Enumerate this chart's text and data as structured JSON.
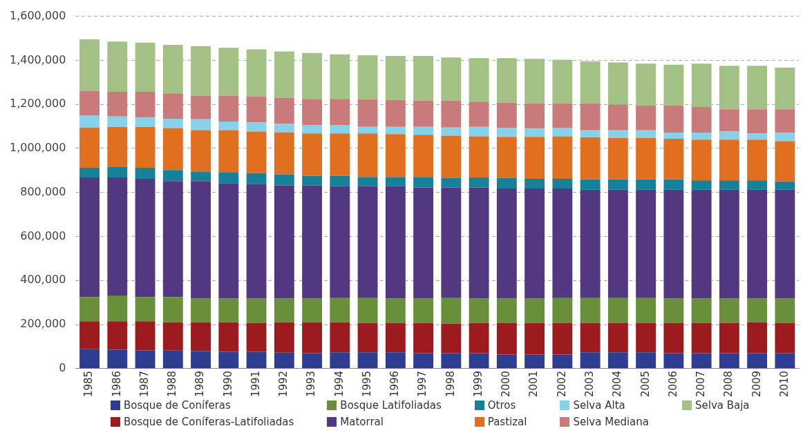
{
  "chart_data": {
    "type": "bar",
    "stacked": true,
    "grid": "y",
    "legend": "bottom",
    "categories": [
      "1985",
      "1986",
      "1987",
      "1988",
      "1989",
      "1990",
      "1991",
      "1992",
      "1993",
      "1994",
      "1995",
      "1996",
      "1997",
      "1998",
      "1999",
      "2000",
      "2001",
      "2002",
      "2003",
      "2004",
      "2005",
      "2006",
      "2007",
      "2008",
      "2009",
      "2010"
    ],
    "ylim": [
      0,
      1600000
    ],
    "yticks": [
      0,
      {
        "value": 200000,
        "label": "200,000"
      },
      {
        "value": 400000,
        "label": "400,000"
      },
      {
        "value": 600000,
        "label": "600,000"
      },
      {
        "value": 800000,
        "label": "800,000"
      },
      {
        "value": 1000000,
        "label": "1,000,000"
      },
      {
        "value": 1200000,
        "label": "1,200,000"
      },
      {
        "value": 1400000,
        "label": "1,400,000"
      },
      {
        "value": 1600000,
        "label": "1,600,000"
      }
    ],
    "series": [
      {
        "name": "Bosque de Coníferas",
        "color": "#2e3c92",
        "values": [
          88000,
          86000,
          82000,
          82000,
          80000,
          76000,
          76000,
          72000,
          70000,
          74000,
          74000,
          74000,
          70000,
          70000,
          70000,
          64000,
          64000,
          64000,
          74000,
          74000,
          74000,
          70000,
          70000,
          70000,
          70000,
          70000
        ]
      },
      {
        "name": "Bosque de Coníferas-Latifoliadas",
        "color": "#9b1b1e",
        "values": [
          127000,
          129000,
          133000,
          128000,
          130000,
          134000,
          132000,
          138000,
          140000,
          136000,
          134000,
          134000,
          138000,
          135000,
          138000,
          144000,
          144000,
          144000,
          134000,
          134000,
          134000,
          138000,
          138000,
          138000,
          140000,
          138000
        ]
      },
      {
        "name": "Bosque Latifoliadas",
        "color": "#6a8f3a",
        "values": [
          110000,
          117000,
          110000,
          115000,
          108000,
          108000,
          110000,
          108000,
          108000,
          110000,
          112000,
          110000,
          110000,
          115000,
          110000,
          110000,
          110000,
          112000,
          112000,
          112000,
          112000,
          110000,
          110000,
          110000,
          108000,
          110000
        ]
      },
      {
        "name": "Matorral",
        "color": "#523880",
        "values": [
          543000,
          536000,
          537000,
          527000,
          534000,
          524000,
          520000,
          514000,
          514000,
          508000,
          508000,
          510000,
          504000,
          502000,
          504000,
          500000,
          500000,
          498000,
          492000,
          492000,
          492000,
          494000,
          494000,
          494000,
          494000,
          494000
        ]
      },
      {
        "name": "Otros",
        "color": "#17819a",
        "values": [
          44000,
          47000,
          50000,
          50000,
          43000,
          48000,
          50000,
          50000,
          44000,
          48000,
          42000,
          42000,
          48000,
          44000,
          46000,
          48000,
          44000,
          44000,
          48000,
          48000,
          48000,
          48000,
          43000,
          43000,
          43000,
          38000
        ]
      },
      {
        "name": "Pastizal",
        "color": "#e07020",
        "values": [
          183000,
          182000,
          185000,
          190000,
          188000,
          193000,
          189000,
          190000,
          192000,
          192000,
          198000,
          195000,
          192000,
          192000,
          187000,
          186000,
          190000,
          193000,
          190000,
          187000,
          187000,
          184000,
          185000,
          185000,
          185000,
          183000
        ]
      },
      {
        "name": "Selva Alta",
        "color": "#86d2ea",
        "values": [
          55000,
          48000,
          43000,
          43000,
          49000,
          39000,
          41000,
          40000,
          37000,
          37000,
          30000,
          33000,
          36000,
          37000,
          43000,
          40000,
          38000,
          37000,
          32000,
          35000,
          35000,
          28000,
          32000,
          37000,
          28000,
          37000
        ]
      },
      {
        "name": "Selva Mediana",
        "color": "#c97b7b",
        "values": [
          110000,
          112000,
          117000,
          115000,
          108000,
          118000,
          117000,
          118000,
          120000,
          120000,
          125000,
          122000,
          120000,
          123000,
          114000,
          116000,
          115000,
          113000,
          123000,
          118000,
          113000,
          123000,
          116000,
          101000,
          110000,
          108000
        ]
      },
      {
        "name": "Selva Baja",
        "color": "#a3c185",
        "values": [
          235000,
          228000,
          223000,
          220000,
          225000,
          217000,
          215000,
          210000,
          208000,
          202000,
          200000,
          200000,
          202000,
          195000,
          198000,
          202000,
          202000,
          198000,
          190000,
          190000,
          190000,
          185000,
          197000,
          197000,
          197000,
          189000
        ]
      }
    ]
  }
}
